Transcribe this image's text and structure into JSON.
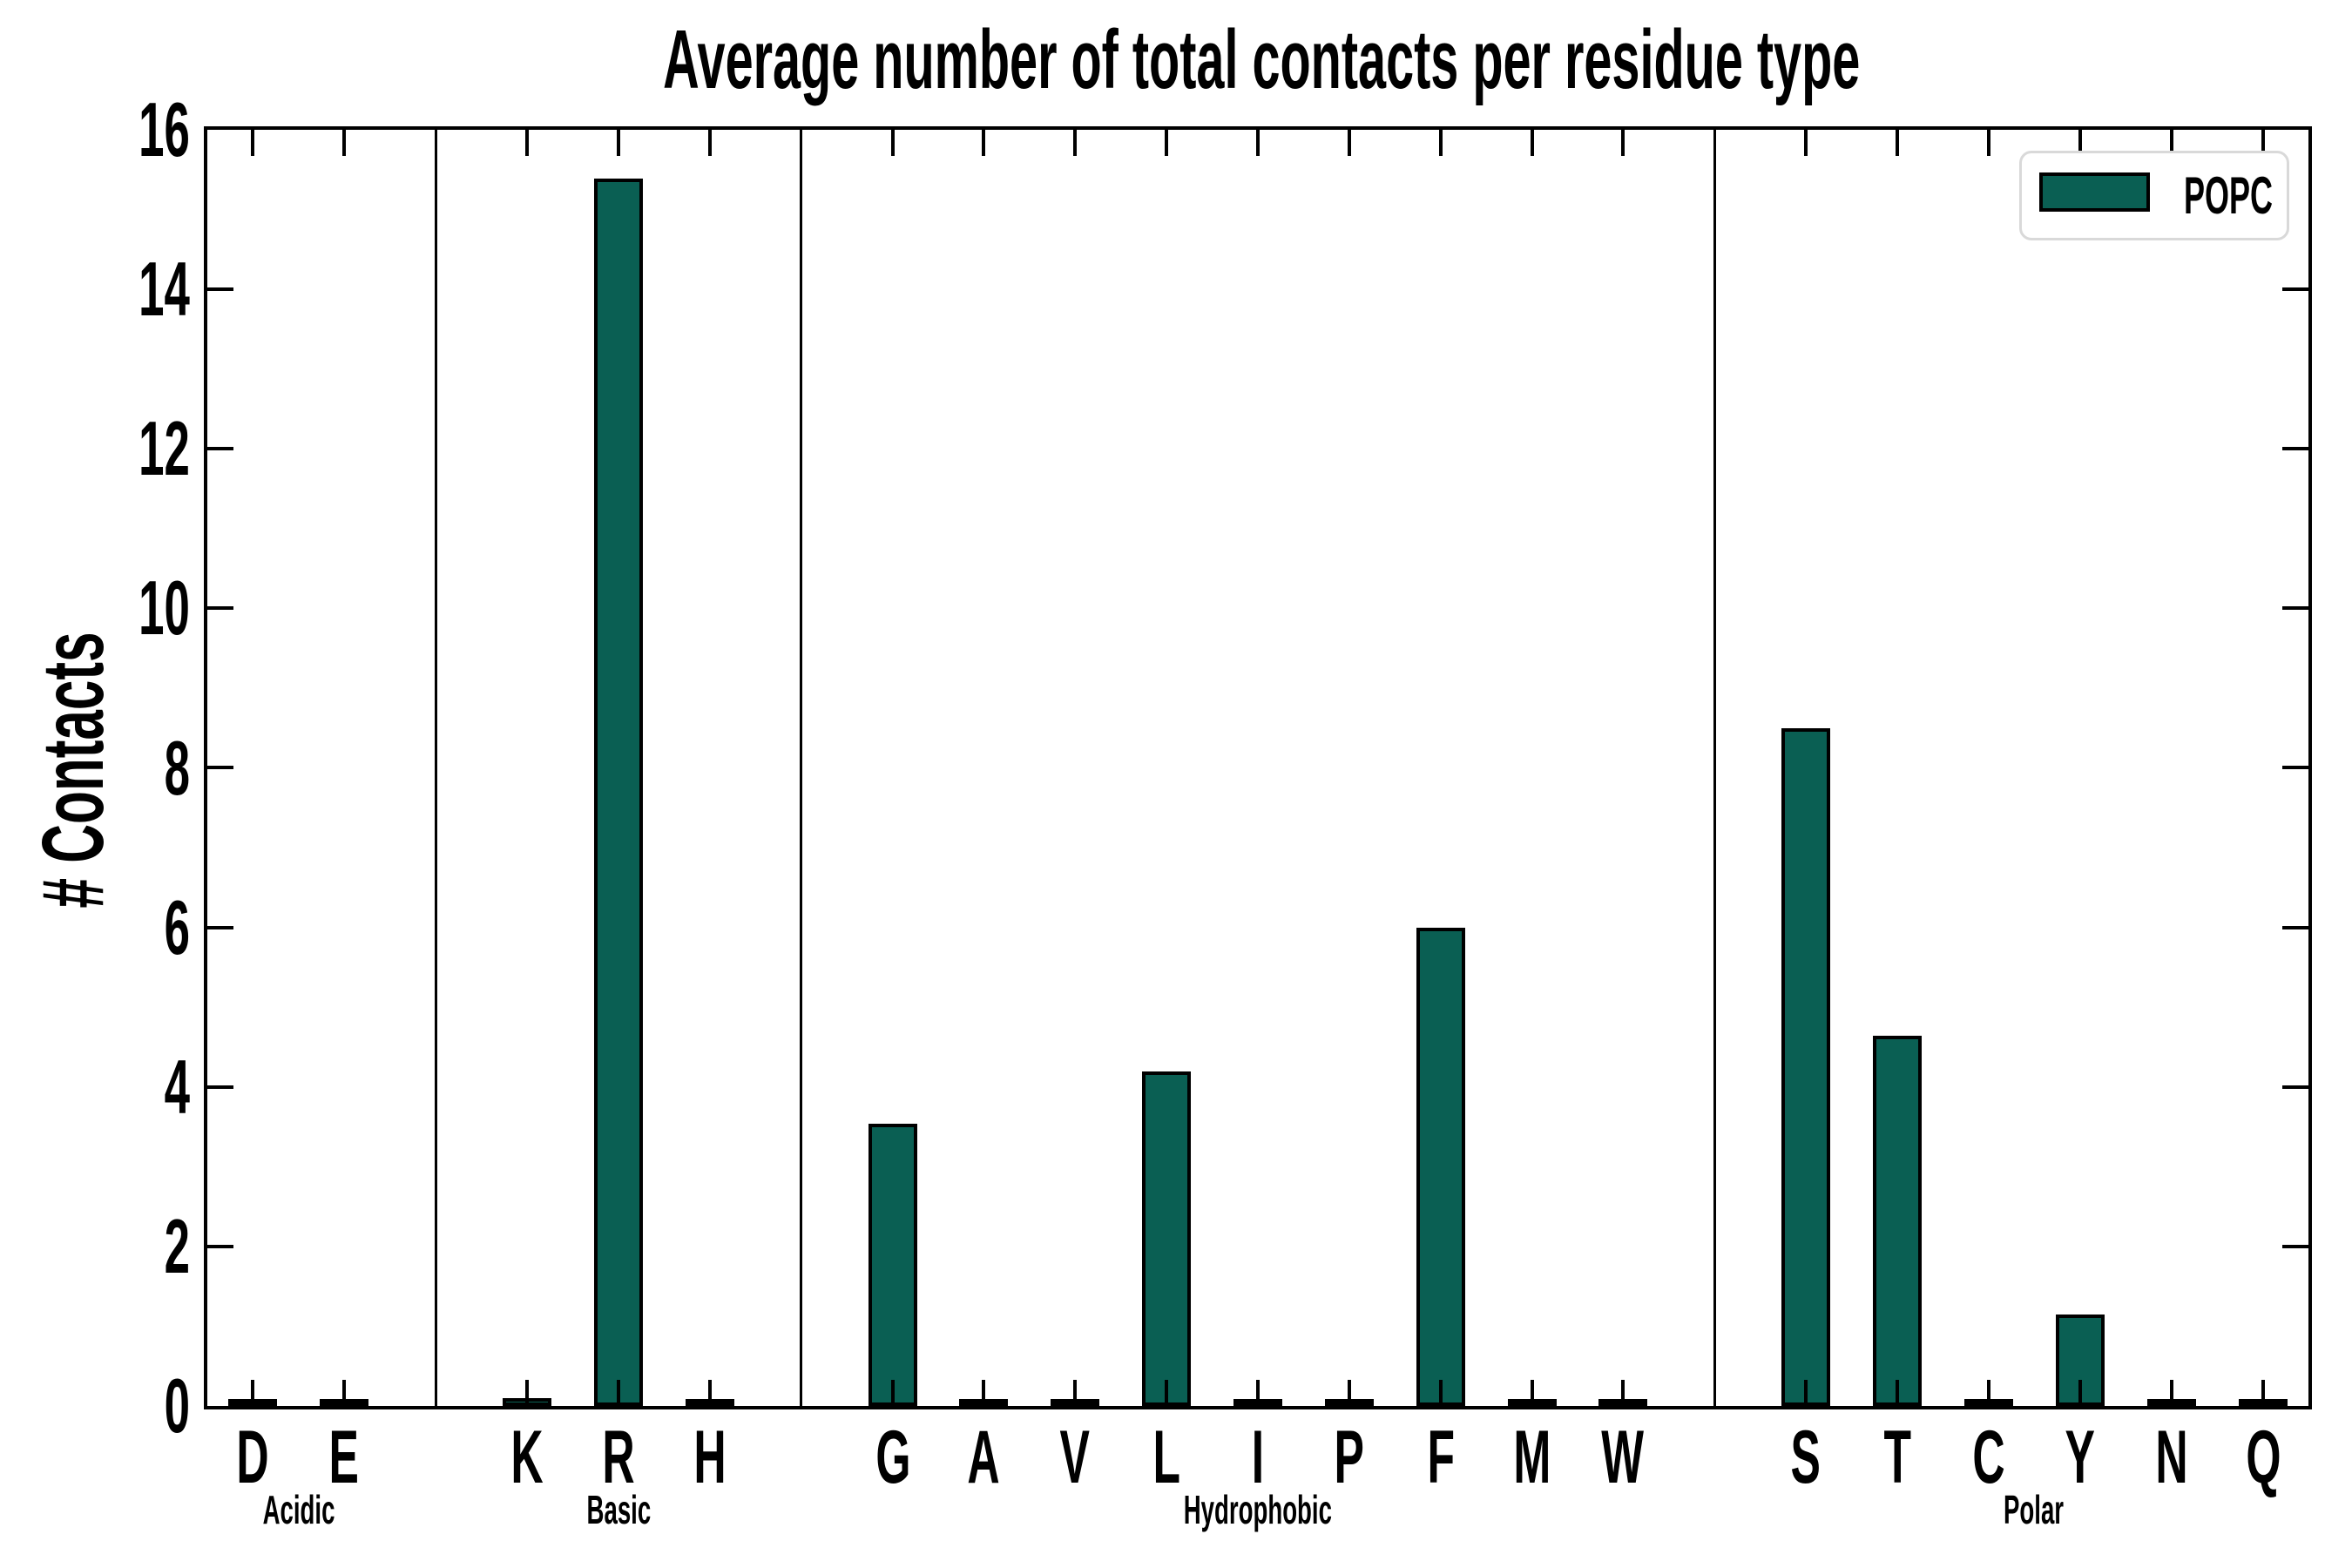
{
  "chart_data": {
    "type": "bar",
    "title": "Average number of total contacts per residue type",
    "ylabel": "# Contacts",
    "xlabel": "",
    "ylim": [
      0,
      16
    ],
    "yticks": [
      0,
      2,
      4,
      6,
      8,
      10,
      12,
      14,
      16
    ],
    "grid": false,
    "tick_direction": "in",
    "legend": {
      "label": "POPC",
      "position": "upper right"
    },
    "colors": {
      "bar_fill": "#0A5F53",
      "bar_edge": "#000000",
      "axis": "#000000",
      "legend_border": "#D9D9D9",
      "background": "#FFFFFF"
    },
    "groups": [
      {
        "name": "Acidic",
        "residues": [
          "D",
          "E"
        ]
      },
      {
        "name": "Basic",
        "residues": [
          "K",
          "R",
          "H"
        ]
      },
      {
        "name": "Hydrophobic",
        "residues": [
          "G",
          "A",
          "V",
          "L",
          "I",
          "P",
          "F",
          "M",
          "W"
        ]
      },
      {
        "name": "Polar",
        "residues": [
          "S",
          "T",
          "C",
          "Y",
          "N",
          "Q"
        ]
      }
    ],
    "values": {
      "D": 0.03,
      "E": 0.03,
      "K": 0.05,
      "R": 15.35,
      "H": 0.03,
      "G": 3.5,
      "A": 0.02,
      "V": 0.03,
      "L": 4.15,
      "I": 0.02,
      "P": 0.03,
      "F": 5.95,
      "M": 0.03,
      "W": 0.03,
      "S": 8.45,
      "T": 4.6,
      "C": 0.02,
      "Y": 1.1,
      "N": 0.03,
      "Q": 0.03
    }
  }
}
